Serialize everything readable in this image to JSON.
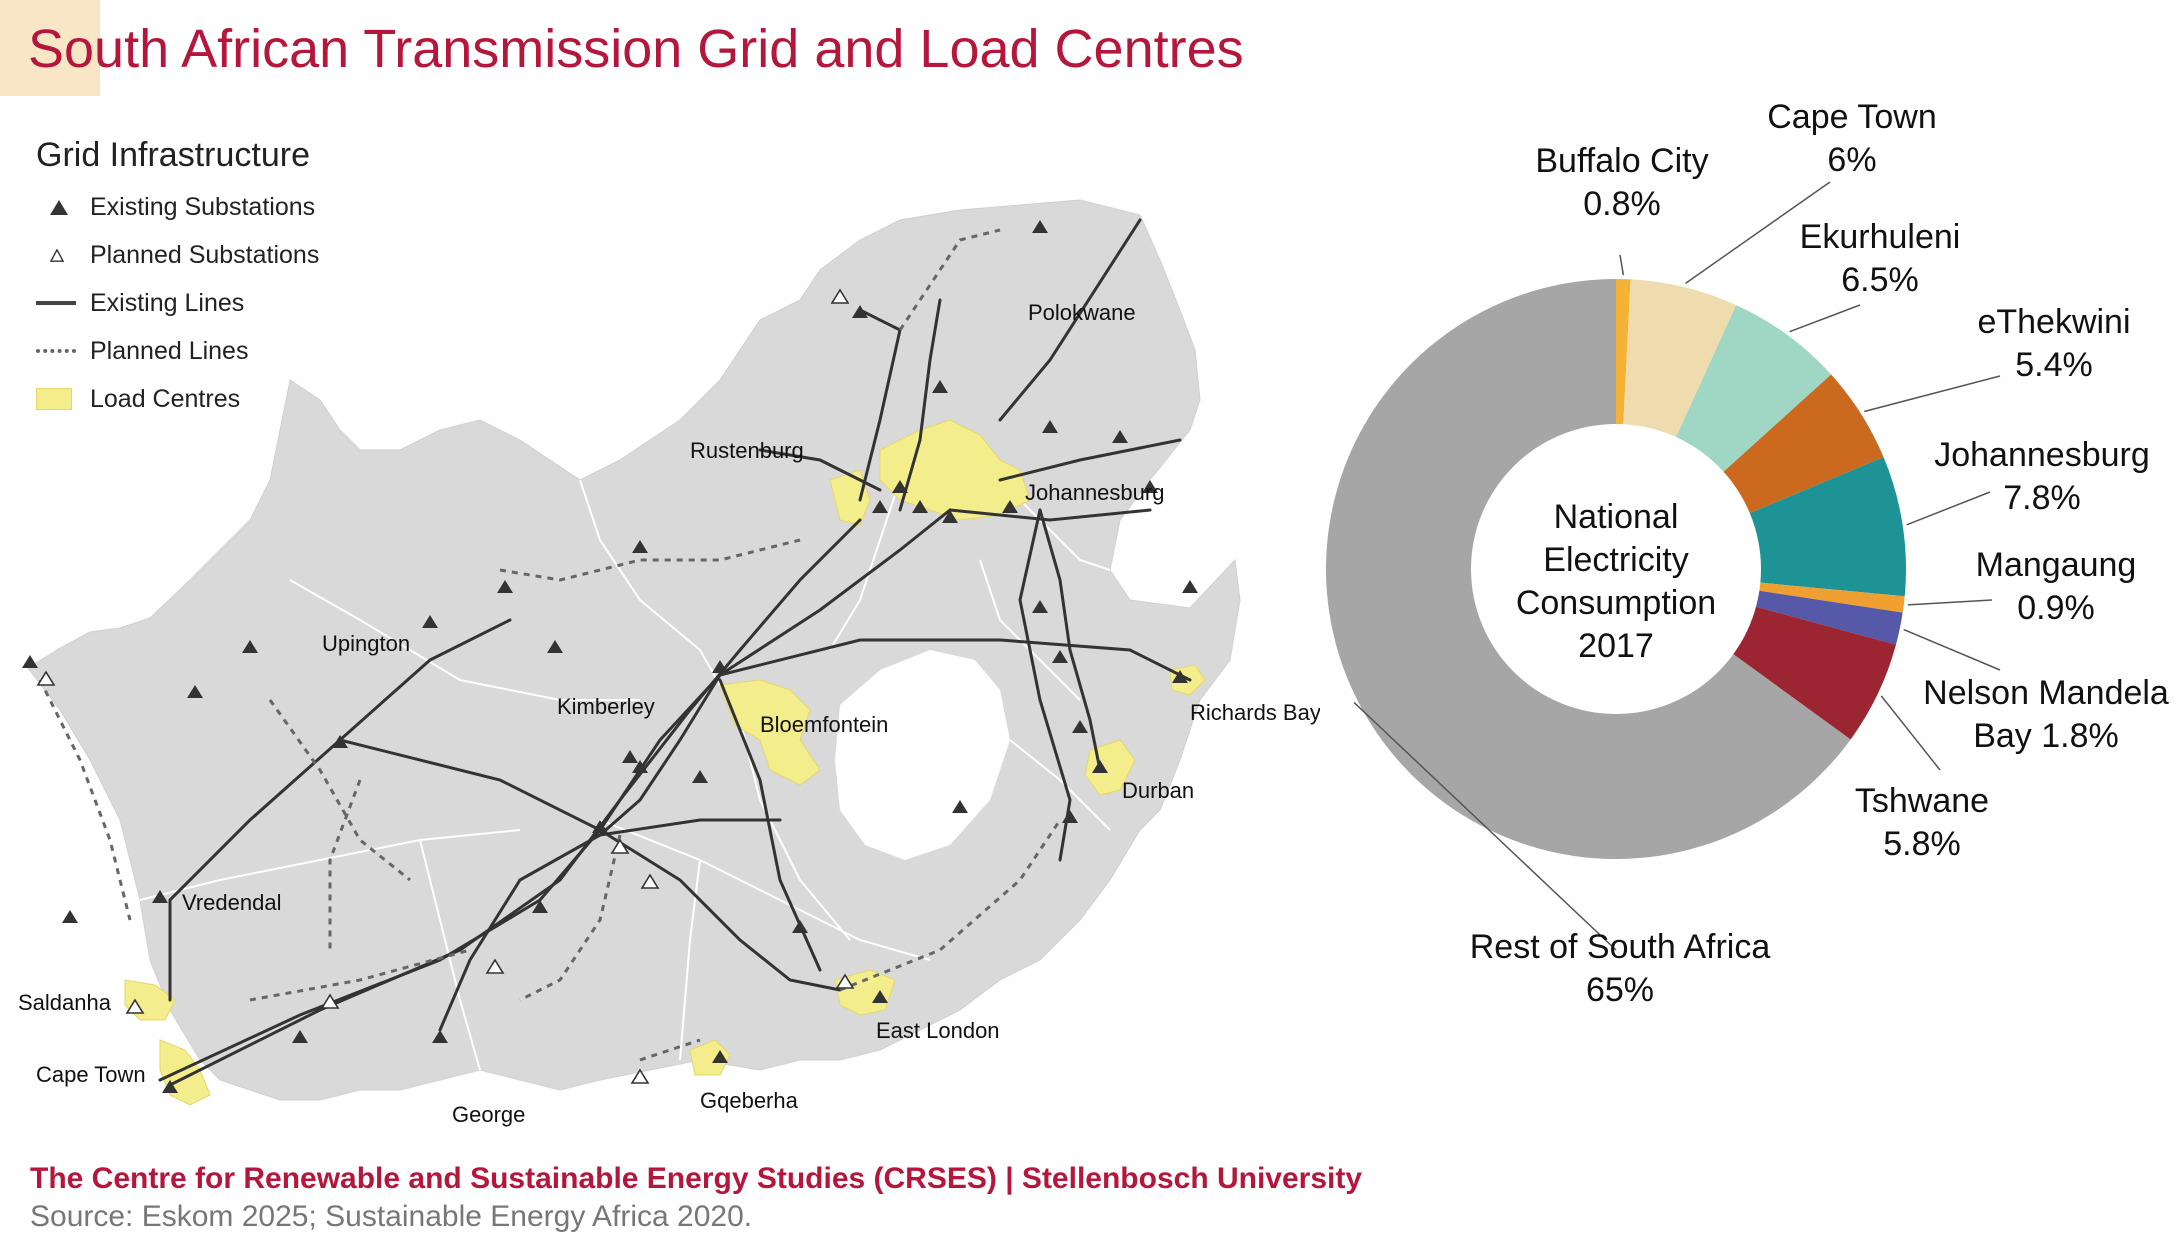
{
  "title": "South African Transmission Grid and Load Centres",
  "legend": {
    "title": "Grid Infrastructure",
    "items": [
      {
        "symbol": "triangle-filled",
        "label": "Existing Substations"
      },
      {
        "symbol": "triangle-open",
        "label": "Planned Substations"
      },
      {
        "symbol": "line-solid",
        "label": "Existing Lines"
      },
      {
        "symbol": "line-dashed",
        "label": "Planned Lines"
      },
      {
        "symbol": "load-box",
        "label": "Load Centres"
      }
    ]
  },
  "map": {
    "cities": [
      "Polokwane",
      "Rustenburg",
      "Johannesburg",
      "Upington",
      "Kimberley",
      "Bloemfontein",
      "Richards Bay",
      "Durban",
      "Vredendal",
      "Saldanha",
      "Cape Town",
      "George",
      "Gqeberha",
      "East London"
    ],
    "colors": {
      "land": "#d9d9d9",
      "load": "#f3ed8c",
      "line": "#333333",
      "border": "#ffffff"
    }
  },
  "chart_data": {
    "type": "pie",
    "title": "National Electricity Consumption 2017",
    "center_lines": [
      "National",
      "Electricity",
      "Consumption",
      "2017"
    ],
    "slices": [
      {
        "label": "Buffalo City",
        "value": 0.8,
        "value_label": "0.8%",
        "color": "#f5b335"
      },
      {
        "label": "Cape Town",
        "value": 6,
        "value_label": "6%",
        "color": "#eedcae"
      },
      {
        "label": "Ekurhuleni",
        "value": 6.5,
        "value_label": "6.5%",
        "color": "#9fd7c4"
      },
      {
        "label": "eThekwini",
        "value": 5.4,
        "value_label": "5.4%",
        "color": "#cb6a1f"
      },
      {
        "label": "Johannesburg",
        "value": 7.8,
        "value_label": "7.8%",
        "color": "#1e9395"
      },
      {
        "label": "Mangaung",
        "value": 0.9,
        "value_label": "0.9%",
        "color": "#f0a030"
      },
      {
        "label": "Nelson Mandela Bay",
        "value": 1.8,
        "value_label": "1.8%",
        "color": "#5658a8"
      },
      {
        "label": "Tshwane",
        "value": 5.8,
        "value_label": "5.8%",
        "color": "#9b2530"
      },
      {
        "label": "Rest of South Africa",
        "value": 65,
        "value_label": "65%",
        "color": "#a6a6a6"
      }
    ]
  },
  "footer": {
    "credit": "The Centre for Renewable and Sustainable Energy Studies (CRSES) | Stellenbosch University",
    "source": "Source: Eskom 2025; Sustainable Energy Africa 2020."
  }
}
